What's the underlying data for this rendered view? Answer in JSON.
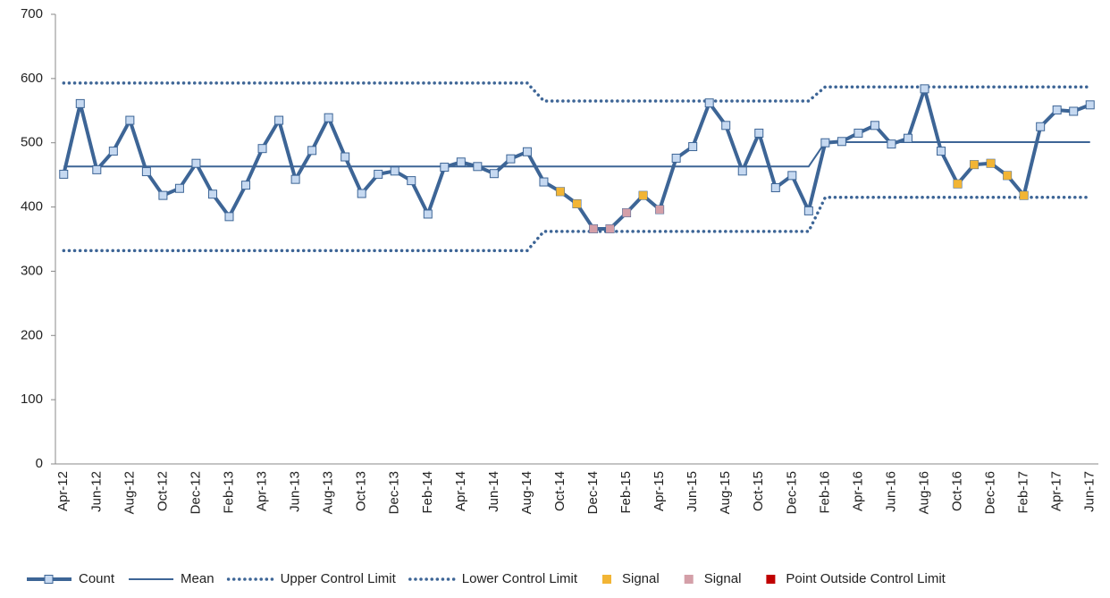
{
  "chart_data": {
    "type": "line",
    "categories": [
      "Apr-12",
      null,
      "Jun-12",
      null,
      "Aug-12",
      null,
      "Oct-12",
      null,
      "Dec-12",
      null,
      "Feb-13",
      null,
      "Apr-13",
      null,
      "Jun-13",
      null,
      "Aug-13",
      null,
      "Oct-13",
      null,
      "Dec-13",
      null,
      "Feb-14",
      null,
      "Apr-14",
      null,
      "Jun-14",
      null,
      "Aug-14",
      null,
      "Oct-14",
      null,
      "Dec-14",
      null,
      "Feb-15",
      null,
      "Apr-15",
      null,
      "Jun-15",
      null,
      "Aug-15",
      null,
      "Oct-15",
      null,
      "Dec-15",
      null,
      "Feb-16",
      null,
      "Apr-16",
      null,
      "Jun-16",
      null,
      "Aug-16",
      null,
      "Oct-16",
      null,
      "Dec-16",
      null,
      "Feb-17",
      null,
      "Apr-17",
      null,
      "Jun-17"
    ],
    "series": [
      {
        "name": "Count",
        "color": "#3d6596",
        "style": "line-markers",
        "values": [
          451,
          561,
          458,
          487,
          535,
          455,
          418,
          429,
          468,
          420,
          385,
          434,
          491,
          535,
          443,
          488,
          539,
          478,
          421,
          451,
          456,
          441,
          389,
          462,
          470,
          463,
          452,
          475,
          486,
          439,
          424,
          405,
          366,
          366,
          391,
          418,
          396,
          476,
          494,
          562,
          527,
          456,
          515,
          430,
          449,
          394,
          500,
          502,
          515,
          527,
          498,
          507,
          584,
          487,
          436,
          466,
          468,
          449,
          418,
          525,
          551,
          549,
          559
        ]
      },
      {
        "name": "Mean",
        "color": "#3d6596",
        "style": "line",
        "values": [
          463,
          463,
          463,
          463,
          463,
          463,
          463,
          463,
          463,
          463,
          463,
          463,
          463,
          463,
          463,
          463,
          463,
          463,
          463,
          463,
          463,
          463,
          463,
          463,
          463,
          463,
          463,
          463,
          463,
          463,
          463,
          463,
          463,
          463,
          463,
          463,
          463,
          463,
          463,
          463,
          463,
          463,
          463,
          463,
          463,
          463,
          501,
          501,
          501,
          501,
          501,
          501,
          501,
          501,
          501,
          501,
          501,
          501,
          501,
          501,
          501,
          501,
          501
        ]
      },
      {
        "name": "Upper Control Limit",
        "color": "#3d6596",
        "style": "dotted",
        "values": [
          593,
          593,
          593,
          593,
          593,
          593,
          593,
          593,
          593,
          593,
          593,
          593,
          593,
          593,
          593,
          593,
          593,
          593,
          593,
          593,
          593,
          593,
          593,
          593,
          593,
          593,
          593,
          593,
          593,
          565,
          565,
          565,
          565,
          565,
          565,
          565,
          565,
          565,
          565,
          565,
          565,
          565,
          565,
          565,
          565,
          565,
          587,
          587,
          587,
          587,
          587,
          587,
          587,
          587,
          587,
          587,
          587,
          587,
          587,
          587,
          587,
          587,
          587
        ]
      },
      {
        "name": "Lower Control Limit",
        "color": "#3d6596",
        "style": "dotted",
        "values": [
          332,
          332,
          332,
          332,
          332,
          332,
          332,
          332,
          332,
          332,
          332,
          332,
          332,
          332,
          332,
          332,
          332,
          332,
          332,
          332,
          332,
          332,
          332,
          332,
          332,
          332,
          332,
          332,
          332,
          362,
          362,
          362,
          362,
          362,
          362,
          362,
          362,
          362,
          362,
          362,
          362,
          362,
          362,
          362,
          362,
          362,
          415,
          415,
          415,
          415,
          415,
          415,
          415,
          415,
          415,
          415,
          415,
          415,
          415,
          415,
          415,
          415,
          415
        ]
      },
      {
        "name": "Signal",
        "color": "#f2b535",
        "style": "markers",
        "values": [
          null,
          null,
          null,
          null,
          null,
          null,
          null,
          null,
          null,
          null,
          null,
          null,
          null,
          null,
          null,
          null,
          null,
          null,
          null,
          null,
          null,
          null,
          null,
          null,
          null,
          null,
          null,
          null,
          null,
          null,
          424,
          405,
          null,
          null,
          null,
          418,
          null,
          null,
          null,
          null,
          null,
          null,
          null,
          null,
          null,
          null,
          null,
          null,
          null,
          null,
          null,
          null,
          null,
          null,
          436,
          466,
          468,
          449,
          418,
          null,
          null,
          null,
          null
        ]
      },
      {
        "name": "Signal",
        "color": "#d49fa8",
        "style": "markers",
        "values": [
          null,
          null,
          null,
          null,
          null,
          null,
          null,
          null,
          null,
          null,
          null,
          null,
          null,
          null,
          null,
          null,
          null,
          null,
          null,
          null,
          null,
          null,
          null,
          null,
          null,
          null,
          null,
          null,
          null,
          null,
          null,
          null,
          366,
          366,
          391,
          null,
          396,
          null,
          null,
          null,
          null,
          null,
          null,
          null,
          null,
          null,
          null,
          null,
          null,
          null,
          null,
          null,
          null,
          null,
          null,
          null,
          null,
          null,
          null,
          null,
          null,
          null,
          null
        ]
      },
      {
        "name": "Point Outside Control Limit",
        "color": "#c00000",
        "style": "markers",
        "values": [
          null,
          null,
          null,
          null,
          null,
          null,
          null,
          null,
          null,
          null,
          null,
          null,
          null,
          null,
          null,
          null,
          null,
          null,
          null,
          null,
          null,
          null,
          null,
          null,
          null,
          null,
          null,
          null,
          null,
          null,
          null,
          null,
          null,
          null,
          null,
          null,
          null,
          null,
          null,
          null,
          null,
          null,
          null,
          null,
          null,
          null,
          null,
          null,
          null,
          null,
          null,
          null,
          null,
          null,
          null,
          null,
          null,
          null,
          null,
          null,
          null,
          null,
          null
        ]
      }
    ],
    "ylim": [
      0,
      700
    ],
    "yticks": [
      0,
      100,
      200,
      300,
      400,
      500,
      600,
      700
    ],
    "grid": false,
    "legend": "bottom"
  }
}
